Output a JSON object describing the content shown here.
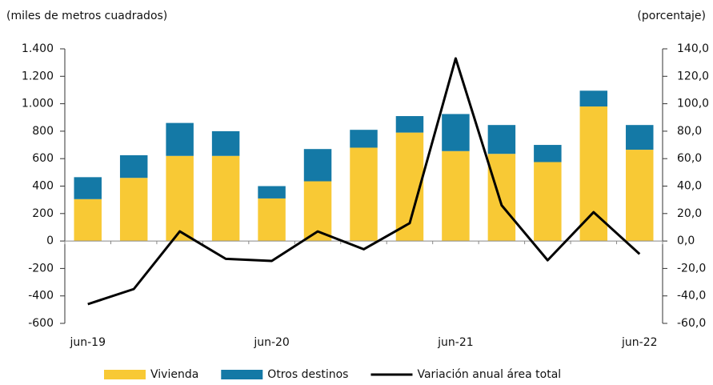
{
  "chart_data": {
    "type": "combo",
    "y_label": "(miles de metros cuadrados)",
    "y2_label": "(porcentaje)",
    "categories": [
      "jun-19",
      null,
      null,
      null,
      "jun-20",
      null,
      null,
      null,
      "jun-21",
      null,
      null,
      null,
      "jun-22"
    ],
    "series": [
      {
        "name": "Vivienda",
        "type": "bar",
        "color": "#f8c935",
        "axis": "y",
        "values": [
          305,
          460,
          620,
          620,
          310,
          435,
          680,
          790,
          655,
          635,
          575,
          980,
          665
        ]
      },
      {
        "name": "Otros destinos",
        "type": "bar",
        "color": "#1479a6",
        "axis": "y",
        "values": [
          160,
          165,
          240,
          180,
          90,
          235,
          130,
          120,
          270,
          210,
          125,
          115,
          180
        ]
      },
      {
        "name": "Variación anual área total",
        "type": "line",
        "color": "#000000",
        "axis": "y2",
        "values": [
          -46,
          -35,
          7,
          -13,
          -14.5,
          7,
          -6,
          13,
          133,
          26,
          -14,
          21,
          -9.5
        ]
      }
    ],
    "stacked": true,
    "ylim": [
      -600,
      1400
    ],
    "yticks": [
      -600,
      -400,
      -200,
      0,
      200,
      400,
      600,
      800,
      {
        "value": 1000,
        "label": "1.000"
      },
      {
        "value": 1200,
        "label": "1.200"
      },
      {
        "value": 1400,
        "label": "1.400"
      }
    ],
    "y2lim": [
      -60,
      140
    ],
    "y2ticks": [
      {
        "value": -60,
        "label": "-60,0"
      },
      {
        "value": -40,
        "label": "-40,0"
      },
      {
        "value": -20,
        "label": "-20,0"
      },
      {
        "value": 0,
        "label": "0,0"
      },
      {
        "value": 20,
        "label": "20,0"
      },
      {
        "value": 40,
        "label": "40,0"
      },
      {
        "value": 60,
        "label": "60,0"
      },
      {
        "value": 80,
        "label": "80,0"
      },
      {
        "value": 100,
        "label": "100,0"
      },
      {
        "value": 120,
        "label": "120,0"
      },
      {
        "value": 140,
        "label": "140,0"
      }
    ],
    "legend": "bottom"
  }
}
